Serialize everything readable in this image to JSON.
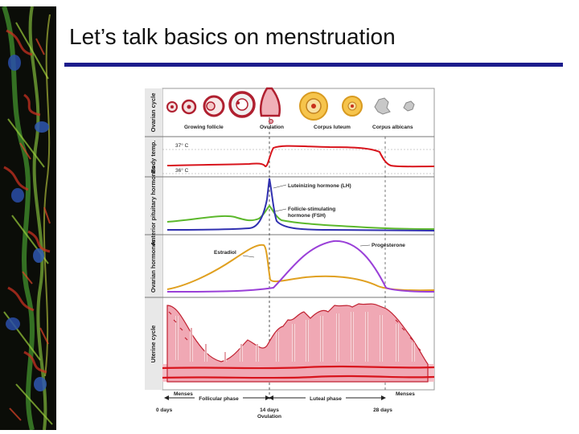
{
  "slide": {
    "title": "Let’s talk basics on menstruation"
  },
  "colors": {
    "title_rule": "#1c1c8c",
    "temperature": "#d8141c",
    "lh": "#3030b0",
    "fsh": "#5cb82c",
    "estradiol": "#e0a020",
    "progesterone": "#9a40d8",
    "endometrium": "#f0a8b4",
    "endometrium_outline": "#c02030"
  },
  "figure": {
    "rows": {
      "ovarian_cycle": "Ovarian cycle",
      "body_temp": "Body temp.",
      "pituitary": "Anterior pituitary hormones",
      "ovarian_hormones": "Ovarian hormones",
      "uterine_cycle": "Uterine cycle"
    },
    "stage_labels": {
      "growing_follicle": "Growing follicle",
      "ovulation": "Ovulation",
      "corpus_luteum": "Corpus luteum",
      "corpus_albicans": "Corpus albicans"
    },
    "temp_labels": {
      "high": "37° C",
      "low": "36° C"
    },
    "hormone_labels": {
      "lh": "Luteinizing hormone (LH)",
      "fsh_line1": "Follicle-stimulating",
      "fsh_line2": "hormone (FSH)",
      "estradiol": "Estradiol",
      "progesterone": "Progesterone"
    },
    "phases": {
      "menses_left": "Menses",
      "menses_right": "Menses",
      "follicular": "Follicular phase",
      "luteal": "Luteal phase"
    },
    "days": {
      "start": "0 days",
      "mid": "14 days",
      "mid_sub": "Ovulation",
      "end": "28 days"
    }
  }
}
